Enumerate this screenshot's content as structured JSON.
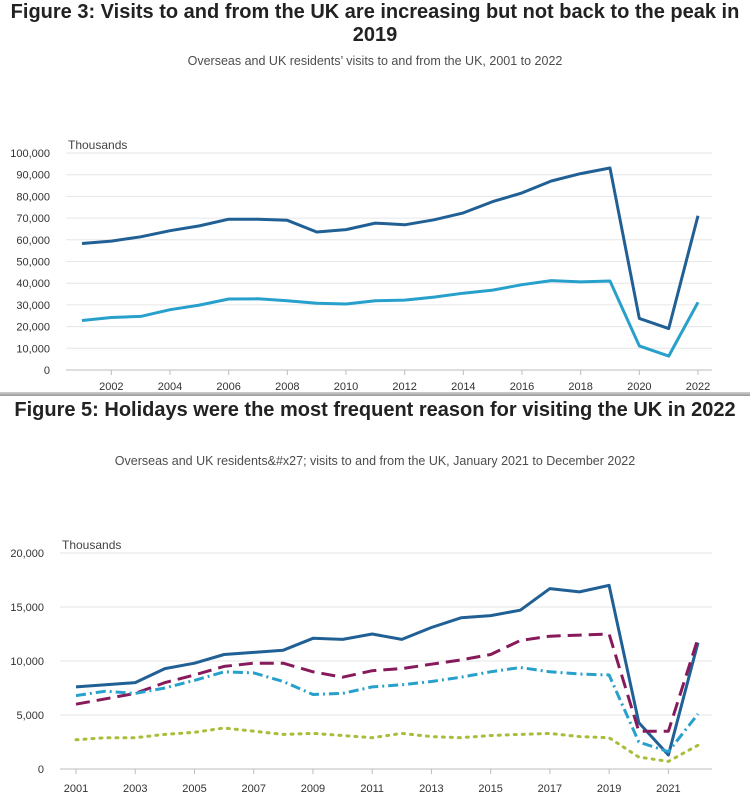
{
  "chart_data": [
    {
      "type": "line",
      "title": "Figure 3: Visits to and from the UK are increasing but not back to the peak in 2019",
      "subtitle": "Overseas and UK residents’ visits to and from the UK, 2001 to 2022",
      "ylabel": "Thousands",
      "xlabel": "",
      "ylim": [
        0,
        100000
      ],
      "xlim": [
        2001,
        2022
      ],
      "yticks": [
        "0",
        "10,000",
        "20,000",
        "30,000",
        "40,000",
        "50,000",
        "60,000",
        "70,000",
        "80,000",
        "90,000",
        "100,000"
      ],
      "xticks": [
        "2002",
        "2004",
        "2006",
        "2008",
        "2010",
        "2012",
        "2014",
        "2016",
        "2018",
        "2020",
        "2022"
      ],
      "grid": true,
      "x": [
        2001,
        2002,
        2003,
        2004,
        2005,
        2006,
        2007,
        2008,
        2009,
        2010,
        2011,
        2012,
        2013,
        2014,
        2015,
        2016,
        2017,
        2018,
        2019,
        2020,
        2021,
        2022
      ],
      "series": [
        {
          "values": [
            58300,
            59400,
            61400,
            64200,
            66400,
            69500,
            69500,
            69000,
            63600,
            64700,
            67700,
            66900,
            69200,
            72400,
            77600,
            81600,
            87100,
            90500,
            93100,
            23800,
            19100,
            71100
          ],
          "color": "#206095",
          "dash": "solid"
        },
        {
          "values": [
            22800,
            24200,
            24700,
            27800,
            29900,
            32700,
            32800,
            31900,
            30800,
            30400,
            31900,
            32200,
            33600,
            35400,
            36800,
            39300,
            41200,
            40600,
            41000,
            11100,
            6400,
            31200
          ],
          "color": "#27a0cc",
          "dash": "solid"
        }
      ]
    },
    {
      "type": "line",
      "title": "Figure 5: Holidays were the most frequent reason for visiting the UK in 2022",
      "subtitle": "Overseas and UK residents&#x27; visits to and from the UK, January 2021 to December 2022",
      "ylabel": "Thousands",
      "xlabel": "",
      "ylim": [
        0,
        20000
      ],
      "xlim": [
        2001,
        2022
      ],
      "yticks": [
        "0",
        "5,000",
        "10,000",
        "15,000",
        "20,000"
      ],
      "xticks": [
        "2001",
        "2003",
        "2005",
        "2007",
        "2009",
        "2011",
        "2013",
        "2015",
        "2017",
        "2019",
        "2021"
      ],
      "grid": true,
      "x": [
        2001,
        2002,
        2003,
        2004,
        2005,
        2006,
        2007,
        2008,
        2009,
        2010,
        2011,
        2012,
        2013,
        2014,
        2015,
        2016,
        2017,
        2018,
        2019,
        2020,
        2021,
        2022
      ],
      "series": [
        {
          "values": [
            7600,
            7800,
            8000,
            9300,
            9800,
            10600,
            10800,
            11000,
            12100,
            12000,
            12500,
            12000,
            13100,
            14000,
            14200,
            14700,
            16700,
            16400,
            17000,
            4300,
            1300,
            11700
          ],
          "color": "#206095",
          "dash": "solid"
        },
        {
          "values": [
            6000,
            6500,
            7000,
            8000,
            8700,
            9500,
            9800,
            9800,
            9000,
            8500,
            9100,
            9300,
            9700,
            10100,
            10600,
            11900,
            12300,
            12400,
            12500,
            3500,
            3500,
            12100
          ],
          "color": "#871a5b",
          "dash": "dashed"
        },
        {
          "values": [
            6800,
            7200,
            7000,
            7500,
            8200,
            9000,
            8900,
            8100,
            6900,
            7000,
            7600,
            7800,
            8100,
            8500,
            9000,
            9400,
            9000,
            8800,
            8700,
            2500,
            1600,
            5100
          ],
          "color": "#27a0cc",
          "dash": "dashdot"
        },
        {
          "values": [
            2700,
            2900,
            2900,
            3200,
            3400,
            3800,
            3500,
            3200,
            3300,
            3100,
            2900,
            3300,
            3000,
            2900,
            3100,
            3200,
            3300,
            3000,
            2900,
            1100,
            700,
            2200
          ],
          "color": "#a8bd3a",
          "dash": "dotted"
        }
      ]
    }
  ]
}
